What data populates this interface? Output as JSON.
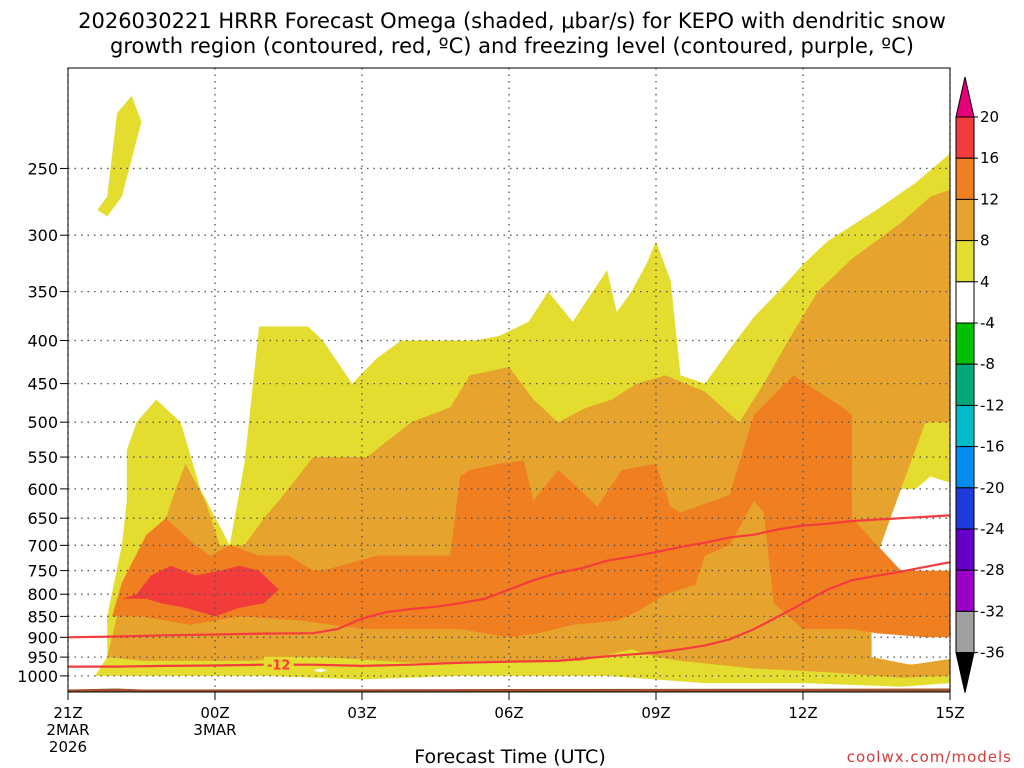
{
  "chart_data": {
    "type": "time-height contour",
    "title_line1": "2026030221 HRRR Forecast Omega (shaded, μbar/s) for KEPO with dendritic snow",
    "title_line2": "growth region (contoured, red, ºC) and freezing level (contoured, purple, ºC)",
    "xlabel": "Forecast Time (UTC)",
    "credit": "coolwx.com/models",
    "x_range_hours": [
      0,
      18
    ],
    "x_ticks": [
      {
        "hour": 0,
        "lines": [
          "21Z",
          "2MAR",
          "2026"
        ]
      },
      {
        "hour": 3,
        "lines": [
          "00Z",
          "3MAR"
        ]
      },
      {
        "hour": 6,
        "lines": [
          "03Z"
        ]
      },
      {
        "hour": 9,
        "lines": [
          "06Z"
        ]
      },
      {
        "hour": 12,
        "lines": [
          "09Z"
        ]
      },
      {
        "hour": 15,
        "lines": [
          "12Z"
        ]
      },
      {
        "hour": 18,
        "lines": [
          "15Z"
        ]
      }
    ],
    "y_ticks_hpa": [
      250,
      300,
      350,
      400,
      450,
      500,
      550,
      600,
      650,
      700,
      750,
      800,
      850,
      900,
      950,
      1000
    ],
    "y_range_hpa": [
      190,
      1045
    ],
    "colorbar": {
      "tick_labels": [
        "20",
        "16",
        "12",
        "8",
        "4",
        "-4",
        "-8",
        "-12",
        "-16",
        "-20",
        "-24",
        "-28",
        "-32",
        "-36"
      ],
      "bins": [
        {
          "range": ">20",
          "color": "#e6007a"
        },
        {
          "range": "16 to 20",
          "color": "#f23c3c"
        },
        {
          "range": "12 to 16",
          "color": "#f07f22"
        },
        {
          "range": "8 to 12",
          "color": "#e6a42e"
        },
        {
          "range": "4 to 8",
          "color": "#e5dc30"
        },
        {
          "range": "-4 to 4",
          "color": "#ffffff"
        },
        {
          "range": "-8 to -4",
          "color": "#00c000"
        },
        {
          "range": "-12 to -8",
          "color": "#00aa78"
        },
        {
          "range": "-16 to -12",
          "color": "#00bcc8"
        },
        {
          "range": "-20 to -16",
          "color": "#008cf0"
        },
        {
          "range": "-24 to -20",
          "color": "#1e3cdc"
        },
        {
          "range": "-28 to -24",
          "color": "#6400c8"
        },
        {
          "range": "-32 to -28",
          "color": "#9b00c8"
        },
        {
          "range": "-36 to -32",
          "color": "#a0a0a0"
        },
        {
          "range": "<-36",
          "color": "#000000"
        }
      ]
    },
    "omega_regions": [
      {
        "level": "4-8",
        "color": "#e5dc30",
        "points": [
          [
            0.55,
            1000
          ],
          [
            0.8,
            950
          ],
          [
            0.8,
            850
          ],
          [
            1.1,
            700
          ],
          [
            1.2,
            620
          ],
          [
            1.2,
            540
          ],
          [
            1.4,
            500
          ],
          [
            1.8,
            470
          ],
          [
            2.3,
            500
          ],
          [
            2.7,
            600
          ],
          [
            3.3,
            700
          ],
          [
            3.6,
            560
          ],
          [
            3.9,
            385
          ],
          [
            4.9,
            385
          ],
          [
            5.2,
            400
          ],
          [
            5.8,
            450
          ],
          [
            6.3,
            420
          ],
          [
            6.8,
            400
          ],
          [
            7.3,
            400
          ],
          [
            7.8,
            400
          ],
          [
            8.3,
            400
          ],
          [
            8.8,
            395
          ],
          [
            9.4,
            380
          ],
          [
            9.8,
            350
          ],
          [
            10.3,
            380
          ],
          [
            11.0,
            330
          ],
          [
            11.2,
            370
          ],
          [
            11.5,
            350
          ],
          [
            11.8,
            325
          ],
          [
            12.0,
            305
          ],
          [
            12.3,
            340
          ],
          [
            12.5,
            440
          ],
          [
            13.0,
            450
          ],
          [
            13.5,
            410
          ],
          [
            14.0,
            375
          ],
          [
            14.5,
            350
          ],
          [
            15.0,
            325
          ],
          [
            15.5,
            305
          ],
          [
            16.5,
            280
          ],
          [
            17.3,
            260
          ],
          [
            18,
            240
          ],
          [
            18,
            600
          ],
          [
            16.8,
            600
          ],
          [
            16.2,
            600
          ],
          [
            15.6,
            850
          ],
          [
            15.5,
            850
          ],
          [
            16.0,
            950
          ],
          [
            17,
            970
          ],
          [
            18,
            965
          ],
          [
            18,
            1020
          ],
          [
            17,
            1030
          ],
          [
            15,
            1020
          ],
          [
            13,
            1020
          ],
          [
            11,
            1000
          ],
          [
            8,
            1000
          ],
          [
            6,
            1010
          ],
          [
            4,
            1000
          ],
          [
            2,
            1000
          ],
          [
            1,
            1000
          ]
        ]
      },
      {
        "level": "4-8",
        "color": "#e5dc30",
        "points": [
          [
            0.6,
            280
          ],
          [
            0.8,
            270
          ],
          [
            1.0,
            215
          ],
          [
            1.3,
            205
          ],
          [
            1.5,
            220
          ],
          [
            1.1,
            270
          ],
          [
            0.8,
            285
          ]
        ]
      },
      {
        "level": "8-12",
        "color": "#e6a42e",
        "points": [
          [
            0.8,
            950
          ],
          [
            1.0,
            850
          ],
          [
            1.3,
            750
          ],
          [
            1.6,
            720
          ],
          [
            1.8,
            700
          ],
          [
            2.0,
            650
          ],
          [
            2.2,
            600
          ],
          [
            2.4,
            560
          ],
          [
            2.8,
            620
          ],
          [
            3.1,
            700
          ],
          [
            3.6,
            700
          ],
          [
            4.0,
            650
          ],
          [
            4.4,
            610
          ],
          [
            5.0,
            550
          ],
          [
            5.2,
            550
          ],
          [
            6.1,
            550
          ],
          [
            7.0,
            500
          ],
          [
            7.8,
            480
          ],
          [
            8.2,
            440
          ],
          [
            9.0,
            430
          ],
          [
            9.5,
            470
          ],
          [
            10.0,
            500
          ],
          [
            10.6,
            480
          ],
          [
            11.1,
            470
          ],
          [
            11.6,
            450
          ],
          [
            12.2,
            440
          ],
          [
            13.0,
            460
          ],
          [
            13.7,
            500
          ],
          [
            14.2,
            450
          ],
          [
            14.7,
            400
          ],
          [
            15.3,
            350
          ],
          [
            16.0,
            320
          ],
          [
            17.0,
            290
          ],
          [
            17.6,
            270
          ],
          [
            18,
            265
          ],
          [
            18,
            500
          ],
          [
            17.5,
            500
          ],
          [
            17.0,
            600
          ],
          [
            16.4,
            750
          ],
          [
            16.4,
            950
          ],
          [
            17.2,
            970
          ],
          [
            18,
            955
          ],
          [
            18,
            1000
          ],
          [
            17,
            1005
          ],
          [
            15.5,
            990
          ],
          [
            14,
            980
          ],
          [
            12.5,
            960
          ],
          [
            12,
            950
          ],
          [
            11.5,
            930
          ],
          [
            10.5,
            960
          ],
          [
            9.0,
            965
          ],
          [
            7.0,
            965
          ],
          [
            5.2,
            950
          ],
          [
            4.5,
            950
          ],
          [
            3.8,
            960
          ],
          [
            2.8,
            960
          ],
          [
            1.5,
            960
          ]
        ]
      },
      {
        "level": "12-16",
        "color": "#f07f22",
        "points": [
          [
            0.9,
            850
          ],
          [
            1.1,
            775
          ],
          [
            1.6,
            680
          ],
          [
            2.0,
            650
          ],
          [
            2.6,
            700
          ],
          [
            2.9,
            720
          ],
          [
            3.3,
            700
          ],
          [
            3.9,
            720
          ],
          [
            4.5,
            720
          ],
          [
            5.0,
            750
          ],
          [
            5.2,
            750
          ],
          [
            6.3,
            720
          ],
          [
            6.8,
            720
          ],
          [
            7.5,
            720
          ],
          [
            7.8,
            720
          ],
          [
            8.0,
            580
          ],
          [
            8.2,
            570
          ],
          [
            8.8,
            560
          ],
          [
            9.3,
            555
          ],
          [
            9.5,
            620
          ],
          [
            10.0,
            570
          ],
          [
            10.3,
            590
          ],
          [
            10.8,
            630
          ],
          [
            11.3,
            570
          ],
          [
            12.0,
            560
          ],
          [
            12.3,
            630
          ],
          [
            12.5,
            640
          ],
          [
            13.5,
            610
          ],
          [
            14.0,
            490
          ],
          [
            14.8,
            440
          ],
          [
            15.8,
            480
          ],
          [
            16.0,
            490
          ],
          [
            16.0,
            650
          ],
          [
            17.0,
            750
          ],
          [
            18,
            750
          ],
          [
            18,
            900
          ],
          [
            17.5,
            900
          ],
          [
            16.5,
            890
          ],
          [
            16,
            880
          ],
          [
            15.0,
            880
          ],
          [
            14.4,
            820
          ],
          [
            14.2,
            640
          ],
          [
            14.0,
            620
          ],
          [
            13.5,
            700
          ],
          [
            13,
            720
          ],
          [
            12.8,
            780
          ],
          [
            12.2,
            800
          ],
          [
            11.6,
            840
          ],
          [
            11.2,
            860
          ],
          [
            10.3,
            870
          ],
          [
            9.6,
            890
          ],
          [
            9.0,
            900
          ],
          [
            8.0,
            880
          ],
          [
            6.0,
            880
          ],
          [
            4.8,
            860
          ],
          [
            3.5,
            850
          ],
          [
            2.5,
            870
          ],
          [
            1.5,
            850
          ]
        ]
      },
      {
        "level": "16-20",
        "color": "#f23c3c",
        "points": [
          [
            1.1,
            810
          ],
          [
            1.4,
            800
          ],
          [
            1.7,
            760
          ],
          [
            2.1,
            740
          ],
          [
            2.6,
            760
          ],
          [
            3.1,
            750
          ],
          [
            3.5,
            740
          ],
          [
            3.9,
            750
          ],
          [
            4.3,
            790
          ],
          [
            4.0,
            820
          ],
          [
            3.5,
            830
          ],
          [
            3.0,
            850
          ],
          [
            2.4,
            830
          ],
          [
            1.9,
            820
          ],
          [
            1.6,
            810
          ]
        ]
      },
      {
        "level": "-4 to 4",
        "color": "#ffffff",
        "points": [
          [
            5.0,
            985
          ],
          [
            5.15,
            980
          ],
          [
            5.3,
            985
          ],
          [
            5.15,
            990
          ]
        ]
      },
      {
        "level": "-4 to 4",
        "color": "#ffffff",
        "points": [
          [
            18,
            590
          ],
          [
            17.6,
            580
          ],
          [
            17.3,
            600
          ],
          [
            17.2,
            620
          ],
          [
            17.4,
            650
          ],
          [
            18,
            660
          ]
        ]
      }
    ],
    "contours": [
      {
        "name": "lower-contour",
        "label": "-12",
        "label_hour": 4.3,
        "points": [
          [
            0,
            975
          ],
          [
            1,
            975
          ],
          [
            2,
            973
          ],
          [
            3,
            972
          ],
          [
            4,
            970
          ],
          [
            5,
            970
          ],
          [
            6,
            973
          ],
          [
            7,
            970
          ],
          [
            8,
            965
          ],
          [
            9,
            962
          ],
          [
            10,
            960
          ],
          [
            11,
            948
          ],
          [
            12,
            938
          ],
          [
            12.5,
            930
          ],
          [
            13,
            920
          ],
          [
            13.5,
            905
          ],
          [
            14,
            880
          ],
          [
            14.5,
            850
          ],
          [
            15,
            820
          ],
          [
            15.5,
            790
          ],
          [
            16,
            770
          ],
          [
            17,
            752
          ],
          [
            18,
            733
          ]
        ]
      },
      {
        "name": "upper-contour",
        "label": "",
        "points": [
          [
            0,
            900
          ],
          [
            1,
            898
          ],
          [
            2,
            895
          ],
          [
            3,
            893
          ],
          [
            4,
            891
          ],
          [
            5,
            890
          ],
          [
            5.5,
            880
          ],
          [
            6,
            855
          ],
          [
            6.5,
            840
          ],
          [
            7,
            833
          ],
          [
            7.5,
            828
          ],
          [
            8,
            820
          ],
          [
            8.5,
            810
          ],
          [
            9,
            790
          ],
          [
            9.5,
            770
          ],
          [
            10,
            755
          ],
          [
            10.5,
            745
          ],
          [
            11,
            730
          ],
          [
            11.5,
            722
          ],
          [
            12,
            713
          ],
          [
            12.5,
            703
          ],
          [
            13,
            695
          ],
          [
            13.5,
            685
          ],
          [
            14,
            680
          ],
          [
            14.5,
            670
          ],
          [
            15,
            663
          ],
          [
            15.5,
            660
          ],
          [
            16,
            655
          ],
          [
            17,
            650
          ],
          [
            18,
            645
          ]
        ]
      }
    ],
    "terrain": {
      "label": "ground",
      "color": "#a0522d",
      "points": [
        [
          0,
          1038
        ],
        [
          1,
          1035
        ],
        [
          1.5,
          1038
        ],
        [
          18,
          1035
        ]
      ]
    }
  }
}
